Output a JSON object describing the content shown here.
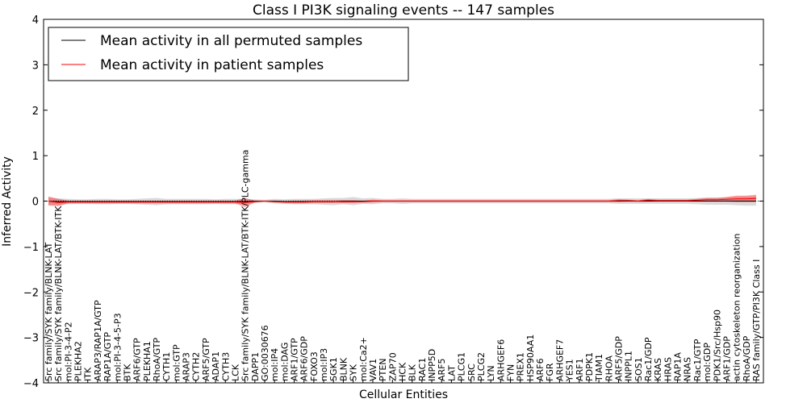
{
  "chart_data": {
    "type": "line",
    "title": "Class I PI3K signaling events -- 147 samples",
    "xlabel": "Cellular Entities",
    "ylabel": "Inferred Activity",
    "ylim": [
      -4,
      4
    ],
    "yticks": [
      -4,
      -3,
      -2,
      -1,
      0,
      1,
      2,
      3,
      4
    ],
    "ytick_labels": [
      "−4",
      "−3",
      "−2",
      "−1",
      "0",
      "1",
      "2",
      "3",
      "4"
    ],
    "legend_position": "top-left",
    "categories": [
      "Src family/SYK family/BLNK-LAT",
      "Src family/SYK family/BLNK-LAT/BTK-ITK",
      "mol:PI-3-4-P2",
      "PLEKHA2",
      "ITK",
      "ARAP3/RAP1A/GTP",
      "RAP1A/GTP",
      "mol:PI-3-4-5-P3",
      "BTK",
      "ARF6/GTP",
      "PLEKHA1",
      "RhoA/GTP",
      "CYTH1",
      "mol:GTP",
      "ARAP3",
      "CYTH2",
      "ARF5/GTP",
      "ADAP1",
      "CYTH3",
      "LCK",
      "Src family/SYK family/BLNK-LAT/BTK-ITK/PLC-gamma",
      "DAPP1",
      "GO:0030676",
      "mol:IP4",
      "mol:DAG",
      "ARF1/GTP",
      "ARF6/GDP",
      "FOXO3",
      "mol:IP3",
      "SGK1",
      "BLNK",
      "SYK",
      "mol:Ca2+",
      "VAV1",
      "PTEN",
      "ZAP70",
      "HCK",
      "BLK",
      "RAC1",
      "INPP5D",
      "ARF5",
      "LAT",
      "PLCG1",
      "SRC",
      "PLCG2",
      "LYN",
      "ARHGEF6",
      "FYN",
      "PREX1",
      "HSP90AA1",
      "ARF6",
      "FGR",
      "ARHGEF7",
      "YES1",
      "ARF1",
      "PDPK1",
      "TIAM1",
      "RHOA",
      "ARF5/GDP",
      "INPPL1",
      "SOS1",
      "Rac1/GDP",
      "KRAS",
      "HRAS",
      "RAP1A",
      "NRAS",
      "Rac1/GTP",
      "mol:GDP",
      "PDK1/Src/Hsp90",
      "ARF1/GDP",
      "actin cytoskeleton reorganization",
      "RhoA/GDP",
      "RAS family/GTP/PI3K Class I"
    ],
    "series": [
      {
        "name": "Mean activity in all permuted samples",
        "color": "#000000",
        "values": [
          0.0,
          -0.01,
          -0.01,
          -0.01,
          -0.01,
          -0.01,
          -0.01,
          -0.01,
          -0.01,
          -0.01,
          -0.01,
          -0.01,
          -0.01,
          -0.01,
          -0.01,
          -0.01,
          -0.01,
          -0.01,
          -0.01,
          -0.01,
          -0.01,
          0.0,
          0.0,
          0.0,
          -0.01,
          -0.01,
          -0.01,
          -0.01,
          -0.01,
          -0.01,
          0.0,
          0.0,
          0.0,
          0.0,
          0.0,
          0.0,
          0.0,
          0.0,
          0.0,
          0.0,
          0.0,
          0.0,
          0.0,
          0.0,
          0.0,
          0.0,
          0.0,
          0.0,
          0.0,
          0.0,
          0.0,
          0.0,
          0.0,
          0.0,
          0.0,
          0.0,
          0.0,
          0.0,
          0.0,
          0.0,
          0.0,
          0.0,
          0.0,
          0.0,
          0.0,
          0.0,
          0.0,
          0.0,
          0.0,
          0.0,
          0.0,
          0.0,
          0.0
        ],
        "band": [
          0.08,
          0.07,
          0.06,
          0.05,
          0.05,
          0.06,
          0.06,
          0.05,
          0.05,
          0.06,
          0.07,
          0.08,
          0.06,
          0.06,
          0.06,
          0.06,
          0.06,
          0.05,
          0.06,
          0.06,
          0.06,
          0.04,
          0.03,
          0.05,
          0.05,
          0.06,
          0.06,
          0.06,
          0.07,
          0.08,
          0.07,
          0.09,
          0.06,
          0.07,
          0.05,
          0.05,
          0.06,
          0.05,
          0.05,
          0.05,
          0.05,
          0.05,
          0.05,
          0.05,
          0.05,
          0.05,
          0.05,
          0.05,
          0.05,
          0.05,
          0.05,
          0.05,
          0.05,
          0.05,
          0.05,
          0.05,
          0.05,
          0.05,
          0.06,
          0.06,
          0.06,
          0.06,
          0.06,
          0.06,
          0.06,
          0.06,
          0.07,
          0.08,
          0.08,
          0.08,
          0.09,
          0.1,
          0.1
        ]
      },
      {
        "name": "Mean activity in patient samples",
        "color": "#ff0000",
        "values": [
          0.0,
          -0.03,
          -0.02,
          -0.02,
          -0.02,
          -0.02,
          -0.02,
          -0.02,
          -0.02,
          -0.02,
          -0.02,
          -0.02,
          -0.02,
          -0.02,
          -0.02,
          -0.02,
          -0.02,
          -0.02,
          -0.02,
          -0.02,
          -0.03,
          -0.01,
          0.0,
          -0.01,
          -0.02,
          -0.02,
          -0.02,
          -0.01,
          -0.01,
          -0.01,
          -0.01,
          -0.01,
          -0.01,
          0.0,
          0.0,
          0.0,
          0.0,
          0.0,
          0.0,
          0.0,
          0.0,
          0.0,
          0.0,
          0.0,
          0.0,
          0.0,
          0.0,
          0.0,
          0.0,
          0.0,
          0.0,
          0.0,
          0.0,
          0.0,
          0.0,
          0.0,
          0.0,
          0.0,
          0.01,
          0.01,
          0.0,
          0.02,
          0.01,
          0.01,
          0.01,
          0.01,
          0.02,
          0.03,
          0.03,
          0.04,
          0.05,
          0.05,
          0.06
        ],
        "band": [
          0.1,
          0.08,
          0.03,
          0.03,
          0.03,
          0.03,
          0.03,
          0.03,
          0.03,
          0.03,
          0.03,
          0.03,
          0.03,
          0.03,
          0.03,
          0.03,
          0.03,
          0.03,
          0.03,
          0.03,
          0.1,
          0.02,
          0.01,
          0.02,
          0.02,
          0.03,
          0.03,
          0.03,
          0.03,
          0.03,
          0.03,
          0.03,
          0.02,
          0.03,
          0.02,
          0.02,
          0.02,
          0.02,
          0.02,
          0.02,
          0.02,
          0.02,
          0.02,
          0.02,
          0.02,
          0.02,
          0.02,
          0.02,
          0.02,
          0.02,
          0.02,
          0.02,
          0.02,
          0.02,
          0.02,
          0.02,
          0.02,
          0.02,
          0.03,
          0.02,
          0.02,
          0.03,
          0.02,
          0.02,
          0.02,
          0.02,
          0.03,
          0.04,
          0.04,
          0.05,
          0.07,
          0.07,
          0.08
        ]
      }
    ]
  }
}
